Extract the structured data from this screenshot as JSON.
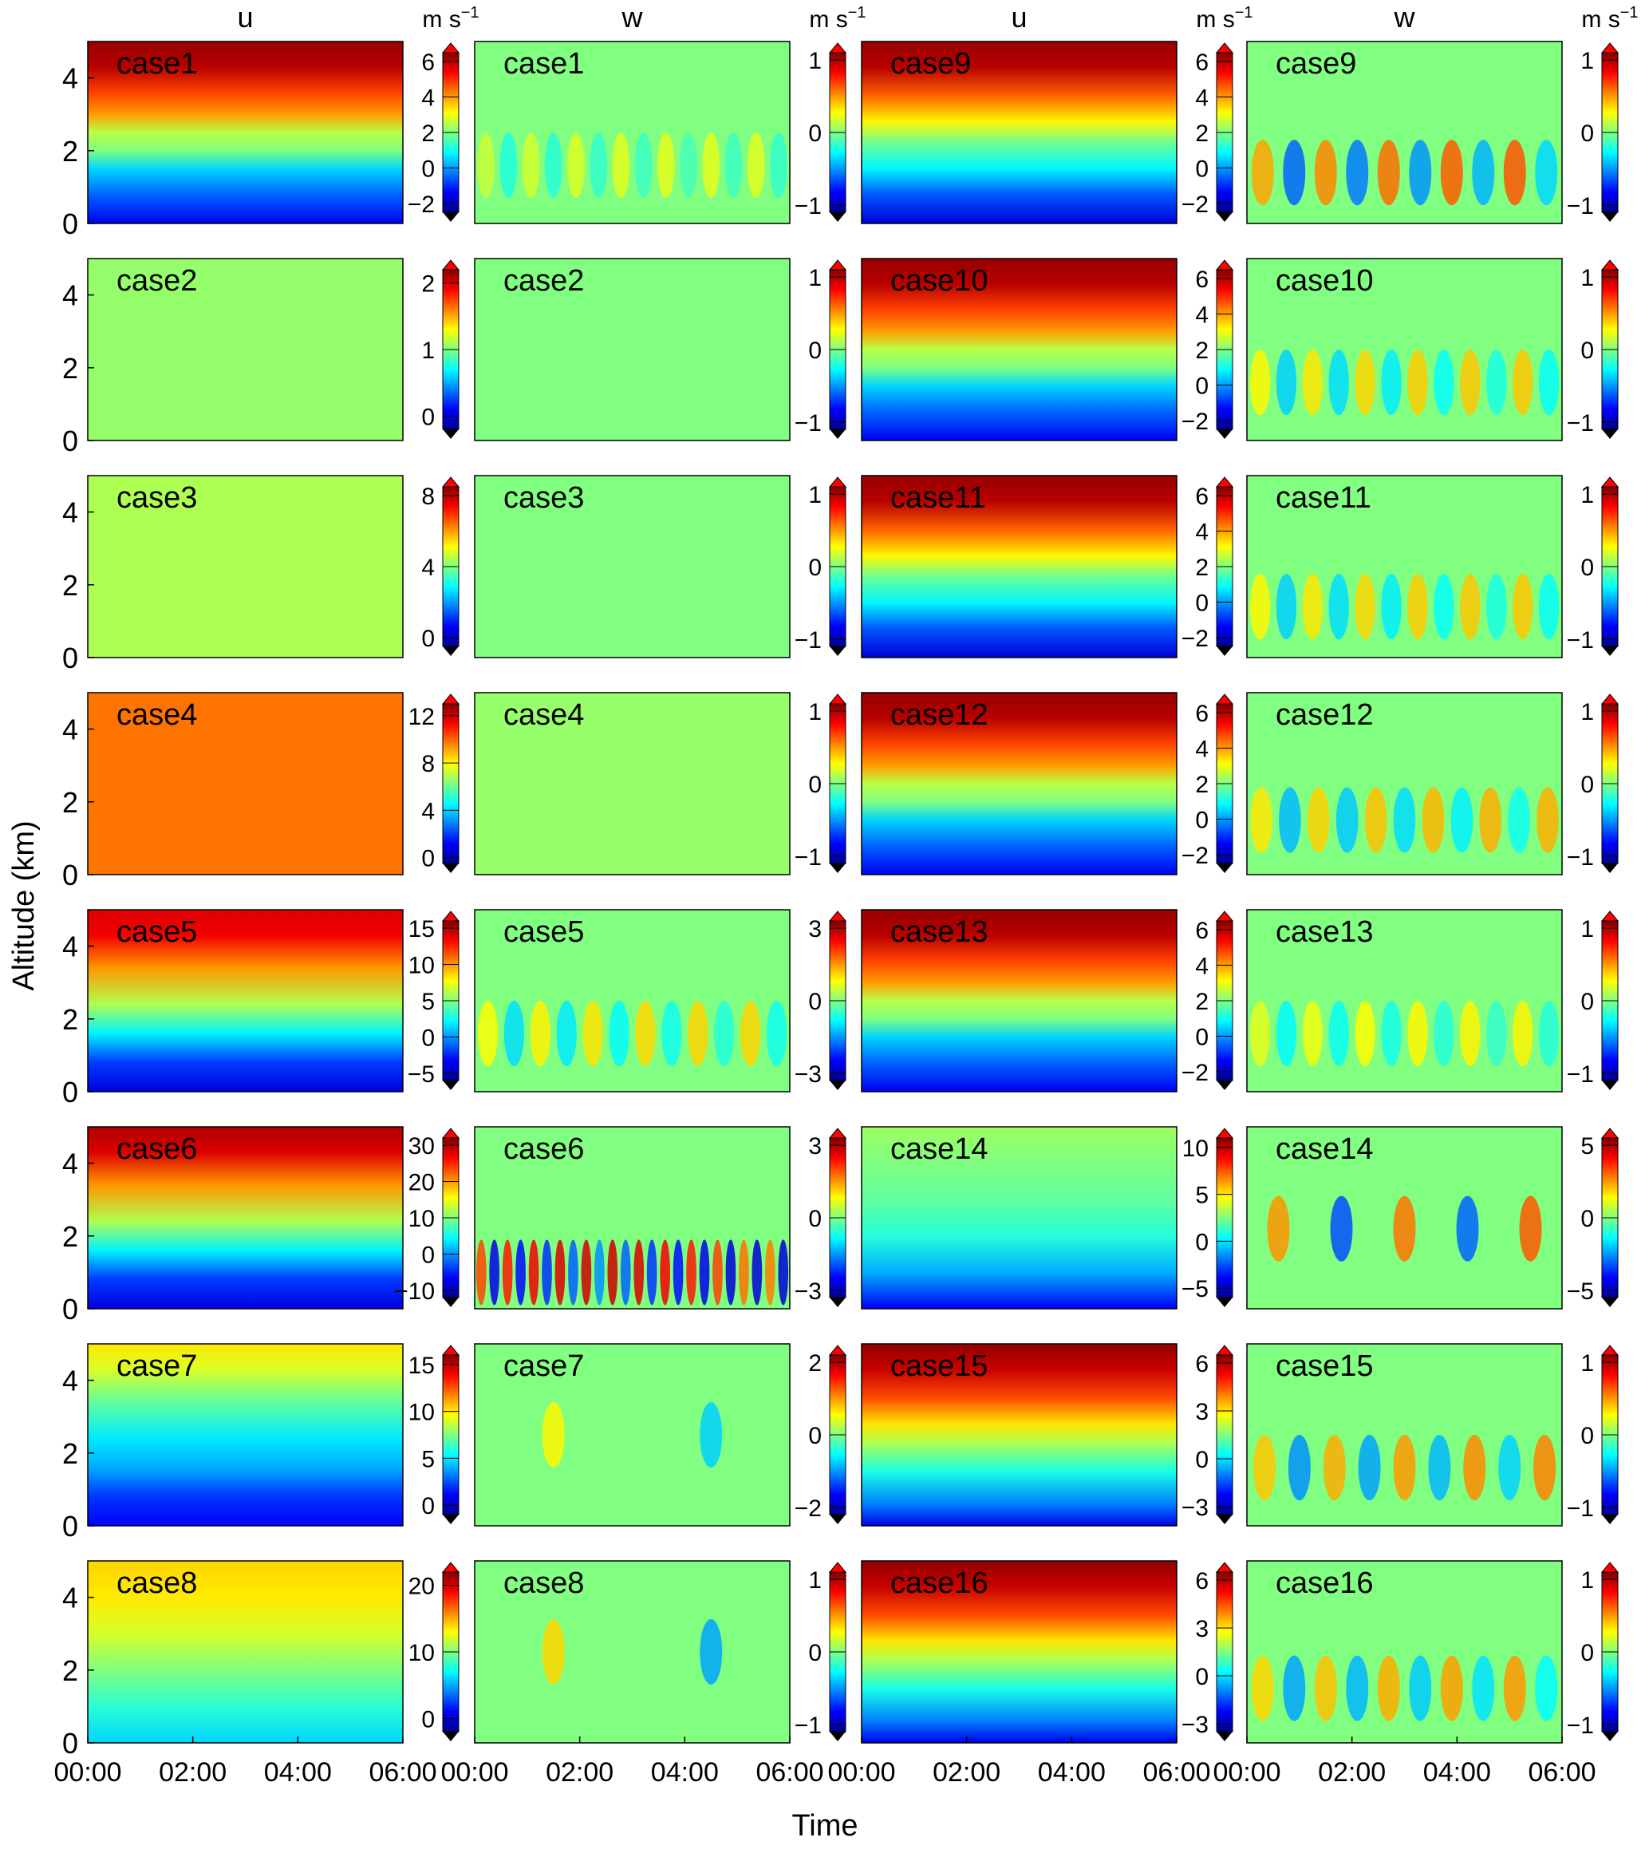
{
  "figure": {
    "ylabel": "Altitude (km)",
    "xlabel": "Time",
    "unit_label": "m s",
    "unit_exponent": "−1",
    "column_titles": [
      "u",
      "w",
      "u",
      "w"
    ],
    "ytick_labels": [
      "0",
      "2",
      "4"
    ],
    "xtick_labels": [
      "00:00",
      "02:00",
      "04:00",
      "06:00"
    ],
    "colormap": [
      "#00008f",
      "#0000ff",
      "#0080ff",
      "#00ffff",
      "#80ff80",
      "#ffff00",
      "#ff8000",
      "#ff0000",
      "#800000"
    ],
    "background_color": "#55f0c2"
  },
  "chart_data": [
    {
      "type": "heatmap",
      "case": "case1",
      "variable": "u",
      "col": 0,
      "row": 0,
      "cbar_ticks": [
        "−2",
        "0",
        "2",
        "4",
        "6"
      ],
      "vmin": -2.5,
      "vmax": 6.5,
      "pattern": "stratified",
      "bands": [
        [
          0,
          -1.5
        ],
        [
          0.8,
          -0.5
        ],
        [
          1.5,
          0.5
        ],
        [
          2.0,
          2.0
        ],
        [
          2.5,
          2.5
        ],
        [
          3.0,
          4.0
        ],
        [
          3.6,
          4.8
        ],
        [
          4.3,
          6.0
        ],
        [
          5,
          6.3
        ]
      ]
    },
    {
      "type": "heatmap",
      "case": "case1",
      "variable": "w",
      "col": 1,
      "row": 0,
      "cbar_ticks": [
        "−1",
        "0",
        "1"
      ],
      "vmin": -1.1,
      "vmax": 1.1,
      "pattern": "waves",
      "value": 0,
      "amp": 0.22,
      "n": 14,
      "zc": 1.6
    },
    {
      "type": "heatmap",
      "case": "case9",
      "variable": "u",
      "col": 2,
      "row": 0,
      "cbar_ticks": [
        "−2",
        "0",
        "2",
        "4",
        "6"
      ],
      "vmin": -2.5,
      "vmax": 6.5,
      "pattern": "stratified",
      "bands": [
        [
          0,
          -1.8
        ],
        [
          0.8,
          -0.6
        ],
        [
          1.5,
          0.8
        ],
        [
          2.2,
          1.8
        ],
        [
          2.8,
          3.2
        ],
        [
          3.5,
          4.5
        ],
        [
          4.3,
          6.0
        ],
        [
          5,
          6.3
        ]
      ]
    },
    {
      "type": "heatmap",
      "case": "case9",
      "variable": "w",
      "col": 3,
      "row": 0,
      "cbar_ticks": [
        "−1",
        "0",
        "1"
      ],
      "vmin": -1.1,
      "vmax": 1.1,
      "pattern": "waves",
      "value": 0,
      "amp": 0.65,
      "n": 10,
      "zc": 1.4
    },
    {
      "type": "heatmap",
      "case": "case2",
      "variable": "u",
      "col": 0,
      "row": 1,
      "cbar_ticks": [
        "0",
        "1",
        "2"
      ],
      "vmin": -0.2,
      "vmax": 2.2,
      "pattern": "uniform",
      "value": 1.05
    },
    {
      "type": "heatmap",
      "case": "case2",
      "variable": "w",
      "col": 1,
      "row": 1,
      "cbar_ticks": [
        "−1",
        "0",
        "1"
      ],
      "vmin": -1.1,
      "vmax": 1.1,
      "pattern": "uniform",
      "value": 0
    },
    {
      "type": "heatmap",
      "case": "case10",
      "variable": "u",
      "col": 2,
      "row": 1,
      "cbar_ticks": [
        "−2",
        "0",
        "2",
        "4",
        "6"
      ],
      "vmin": -2.5,
      "vmax": 6.5,
      "pattern": "stratified",
      "bands": [
        [
          0,
          -1.5
        ],
        [
          0.8,
          -0.5
        ],
        [
          1.5,
          0.5
        ],
        [
          2.0,
          2.0
        ],
        [
          2.5,
          2.5
        ],
        [
          3.0,
          4.0
        ],
        [
          3.6,
          4.8
        ],
        [
          4.3,
          6.0
        ],
        [
          5,
          6.3
        ]
      ]
    },
    {
      "type": "heatmap",
      "case": "case10",
      "variable": "w",
      "col": 3,
      "row": 1,
      "cbar_ticks": [
        "−1",
        "0",
        "1"
      ],
      "vmin": -1.1,
      "vmax": 1.1,
      "pattern": "waves",
      "value": 0,
      "amp": 0.4,
      "n": 12,
      "zc": 1.6
    },
    {
      "type": "heatmap",
      "case": "case3",
      "variable": "u",
      "col": 0,
      "row": 2,
      "cbar_ticks": [
        "0",
        "4",
        "8"
      ],
      "vmin": -0.5,
      "vmax": 8.5,
      "pattern": "uniform",
      "value": 4.4
    },
    {
      "type": "heatmap",
      "case": "case3",
      "variable": "w",
      "col": 1,
      "row": 2,
      "cbar_ticks": [
        "−1",
        "0",
        "1"
      ],
      "vmin": -1.1,
      "vmax": 1.1,
      "pattern": "uniform",
      "value": 0
    },
    {
      "type": "heatmap",
      "case": "case11",
      "variable": "u",
      "col": 2,
      "row": 2,
      "cbar_ticks": [
        "−2",
        "0",
        "2",
        "4",
        "6"
      ],
      "vmin": -2.5,
      "vmax": 6.5,
      "pattern": "stratified",
      "bands": [
        [
          0,
          -1.8
        ],
        [
          0.8,
          -0.6
        ],
        [
          1.5,
          0.8
        ],
        [
          2.2,
          1.8
        ],
        [
          2.8,
          3.2
        ],
        [
          3.5,
          4.5
        ],
        [
          4.3,
          6.0
        ],
        [
          5,
          6.3
        ]
      ]
    },
    {
      "type": "heatmap",
      "case": "case11",
      "variable": "w",
      "col": 3,
      "row": 2,
      "cbar_ticks": [
        "−1",
        "0",
        "1"
      ],
      "vmin": -1.1,
      "vmax": 1.1,
      "pattern": "waves",
      "value": 0,
      "amp": 0.4,
      "n": 12,
      "zc": 1.4
    },
    {
      "type": "heatmap",
      "case": "case4",
      "variable": "u",
      "col": 0,
      "row": 3,
      "cbar_ticks": [
        "0",
        "4",
        "8",
        "12"
      ],
      "vmin": -0.5,
      "vmax": 13,
      "pattern": "uniform",
      "value": 9.8
    },
    {
      "type": "heatmap",
      "case": "case4",
      "variable": "w",
      "col": 1,
      "row": 3,
      "cbar_ticks": [
        "−1",
        "0",
        "1"
      ],
      "vmin": -1.1,
      "vmax": 1.1,
      "pattern": "uniform",
      "value": 0.05
    },
    {
      "type": "heatmap",
      "case": "case12",
      "variable": "u",
      "col": 2,
      "row": 3,
      "cbar_ticks": [
        "−2",
        "0",
        "2",
        "4",
        "6"
      ],
      "vmin": -2.5,
      "vmax": 6.5,
      "pattern": "stratified",
      "bands": [
        [
          0,
          -1.5
        ],
        [
          0.8,
          -0.5
        ],
        [
          1.5,
          0.5
        ],
        [
          2.0,
          2.0
        ],
        [
          2.5,
          2.5
        ],
        [
          3.0,
          4.0
        ],
        [
          3.6,
          4.8
        ],
        [
          4.3,
          6.0
        ],
        [
          5,
          6.3
        ]
      ]
    },
    {
      "type": "heatmap",
      "case": "case12",
      "variable": "w",
      "col": 3,
      "row": 3,
      "cbar_ticks": [
        "−1",
        "0",
        "1"
      ],
      "vmin": -1.1,
      "vmax": 1.1,
      "pattern": "waves",
      "value": 0,
      "amp": 0.45,
      "n": 11,
      "zc": 1.5
    },
    {
      "type": "heatmap",
      "case": "case5",
      "variable": "u",
      "col": 0,
      "row": 4,
      "cbar_ticks": [
        "−5",
        "0",
        "5",
        "10",
        "15"
      ],
      "vmin": -6,
      "vmax": 16,
      "pattern": "stratified",
      "bands": [
        [
          0,
          -4
        ],
        [
          0.8,
          -2
        ],
        [
          1.6,
          2
        ],
        [
          2.4,
          6
        ],
        [
          3.4,
          10
        ],
        [
          4.3,
          13.5
        ],
        [
          5,
          14
        ]
      ]
    },
    {
      "type": "heatmap",
      "case": "case5",
      "variable": "w",
      "col": 1,
      "row": 4,
      "cbar_ticks": [
        "−3",
        "0",
        "3"
      ],
      "vmin": -3.3,
      "vmax": 3.3,
      "pattern": "waves",
      "value": 0,
      "amp": 1.1,
      "n": 12,
      "zc": 1.6
    },
    {
      "type": "heatmap",
      "case": "case13",
      "variable": "u",
      "col": 2,
      "row": 4,
      "cbar_ticks": [
        "−2",
        "0",
        "2",
        "4",
        "6"
      ],
      "vmin": -2.5,
      "vmax": 6.5,
      "pattern": "stratified",
      "bands": [
        [
          0,
          -1.5
        ],
        [
          0.8,
          -0.5
        ],
        [
          1.5,
          0.5
        ],
        [
          2.0,
          2.0
        ],
        [
          2.5,
          2.5
        ],
        [
          3.0,
          4.0
        ],
        [
          3.6,
          4.8
        ],
        [
          4.3,
          6.0
        ],
        [
          5,
          6.3
        ]
      ]
    },
    {
      "type": "heatmap",
      "case": "case13",
      "variable": "w",
      "col": 3,
      "row": 4,
      "cbar_ticks": [
        "−1",
        "0",
        "1"
      ],
      "vmin": -1.1,
      "vmax": 1.1,
      "pattern": "waves",
      "value": 0,
      "amp": 0.3,
      "n": 12,
      "zc": 1.6
    },
    {
      "type": "heatmap",
      "case": "case6",
      "variable": "u",
      "col": 0,
      "row": 5,
      "cbar_ticks": [
        "−10",
        "0",
        "10",
        "20",
        "30"
      ],
      "vmin": -12,
      "vmax": 32,
      "pattern": "stratified",
      "bands": [
        [
          0,
          -8
        ],
        [
          0.8,
          -4
        ],
        [
          1.6,
          4
        ],
        [
          2.4,
          12
        ],
        [
          3.4,
          20
        ],
        [
          4.3,
          28
        ],
        [
          5,
          30
        ]
      ]
    },
    {
      "type": "heatmap",
      "case": "case6",
      "variable": "w",
      "col": 1,
      "row": 5,
      "cbar_ticks": [
        "−3",
        "0",
        "3"
      ],
      "vmin": -3.3,
      "vmax": 3.3,
      "pattern": "waves",
      "value": 0,
      "amp": 2.8,
      "n": 24,
      "zc": 1.0
    },
    {
      "type": "heatmap",
      "case": "case14",
      "variable": "u",
      "col": 2,
      "row": 5,
      "cbar_ticks": [
        "−5",
        "0",
        "5",
        "10"
      ],
      "vmin": -6,
      "vmax": 11,
      "pattern": "stratified",
      "bands": [
        [
          0,
          -4
        ],
        [
          1.0,
          -1
        ],
        [
          2.0,
          1
        ],
        [
          3.0,
          2
        ],
        [
          4.0,
          2.5
        ],
        [
          5,
          3
        ]
      ]
    },
    {
      "type": "heatmap",
      "case": "case14",
      "variable": "w",
      "col": 3,
      "row": 5,
      "cbar_ticks": [
        "−5",
        "0",
        "5"
      ],
      "vmin": -5.5,
      "vmax": 5.5,
      "pattern": "waves",
      "value": 0,
      "amp": 3.5,
      "n": 5,
      "zc": 2.2
    },
    {
      "type": "heatmap",
      "case": "case7",
      "variable": "u",
      "col": 0,
      "row": 6,
      "cbar_ticks": [
        "0",
        "5",
        "10",
        "15"
      ],
      "vmin": -1,
      "vmax": 16,
      "pattern": "stratified",
      "bands": [
        [
          0,
          1
        ],
        [
          0.8,
          2
        ],
        [
          1.6,
          4
        ],
        [
          2.4,
          5
        ],
        [
          3.4,
          7
        ],
        [
          4.3,
          9
        ],
        [
          5,
          10
        ]
      ]
    },
    {
      "type": "heatmap",
      "case": "case7",
      "variable": "w",
      "col": 1,
      "row": 6,
      "cbar_ticks": [
        "−2",
        "0",
        "2"
      ],
      "vmin": -2.2,
      "vmax": 2.2,
      "pattern": "waves",
      "value": 0,
      "amp": 0.8,
      "n": 2,
      "zc": 2.5
    },
    {
      "type": "heatmap",
      "case": "case15",
      "variable": "u",
      "col": 2,
      "row": 6,
      "cbar_ticks": [
        "−3",
        "0",
        "3",
        "6"
      ],
      "vmin": -3.5,
      "vmax": 6.5,
      "pattern": "stratified",
      "bands": [
        [
          0,
          -2.5
        ],
        [
          0.6,
          -1
        ],
        [
          1.5,
          0.5
        ],
        [
          2.3,
          2
        ],
        [
          2.8,
          3
        ],
        [
          3.5,
          4.5
        ],
        [
          4.3,
          5.8
        ],
        [
          5,
          6.3
        ]
      ]
    },
    {
      "type": "heatmap",
      "case": "case15",
      "variable": "w",
      "col": 3,
      "row": 6,
      "cbar_ticks": [
        "−1",
        "0",
        "1"
      ],
      "vmin": -1.1,
      "vmax": 1.1,
      "pattern": "waves",
      "value": 0,
      "amp": 0.55,
      "n": 9,
      "zc": 1.6
    },
    {
      "type": "heatmap",
      "case": "case8",
      "variable": "u",
      "col": 0,
      "row": 7,
      "cbar_ticks": [
        "0",
        "10",
        "20"
      ],
      "vmin": -2,
      "vmax": 22,
      "pattern": "stratified",
      "bands": [
        [
          0,
          6
        ],
        [
          1.0,
          8
        ],
        [
          2.0,
          10
        ],
        [
          3.0,
          12
        ],
        [
          4.0,
          13.5
        ],
        [
          5,
          14
        ]
      ]
    },
    {
      "type": "heatmap",
      "case": "case8",
      "variable": "w",
      "col": 1,
      "row": 7,
      "cbar_ticks": [
        "−1",
        "0",
        "1"
      ],
      "vmin": -1.1,
      "vmax": 1.1,
      "pattern": "waves",
      "value": 0,
      "amp": 0.5,
      "n": 2,
      "zc": 2.5
    },
    {
      "type": "heatmap",
      "case": "case16",
      "variable": "u",
      "col": 2,
      "row": 7,
      "cbar_ticks": [
        "−3",
        "0",
        "3",
        "6"
      ],
      "vmin": -3.5,
      "vmax": 6.5,
      "pattern": "stratified",
      "bands": [
        [
          0,
          -2.5
        ],
        [
          0.6,
          -1
        ],
        [
          1.5,
          0.5
        ],
        [
          2.3,
          2
        ],
        [
          2.8,
          3
        ],
        [
          3.5,
          4.5
        ],
        [
          4.3,
          5.8
        ],
        [
          5,
          6.3
        ]
      ]
    },
    {
      "type": "heatmap",
      "case": "case16",
      "variable": "w",
      "col": 3,
      "row": 7,
      "cbar_ticks": [
        "−1",
        "0",
        "1"
      ],
      "vmin": -1.1,
      "vmax": 1.1,
      "pattern": "waves",
      "value": 0,
      "amp": 0.5,
      "n": 10,
      "zc": 1.5
    }
  ]
}
